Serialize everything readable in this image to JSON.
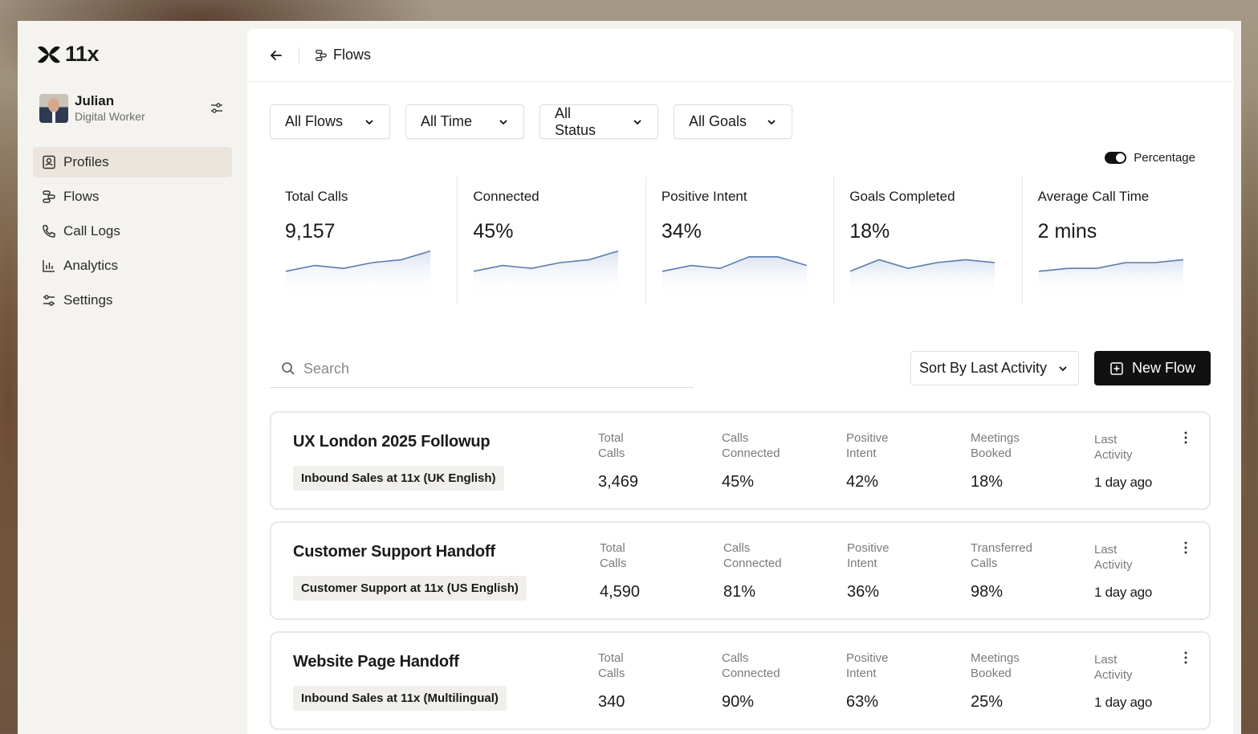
{
  "brand": {
    "logo_text": "11x"
  },
  "profile": {
    "name": "Julian",
    "role": "Digital Worker"
  },
  "sidebar": {
    "items": [
      {
        "label": "Profiles",
        "icon": "profile-icon",
        "active": true
      },
      {
        "label": "Flows",
        "icon": "flows-icon",
        "active": false
      },
      {
        "label": "Call Logs",
        "icon": "phone-icon",
        "active": false
      },
      {
        "label": "Analytics",
        "icon": "bar-chart-icon",
        "active": false
      },
      {
        "label": "Settings",
        "icon": "sliders-icon",
        "active": false
      }
    ]
  },
  "topbar": {
    "title": "Flows"
  },
  "filters": [
    {
      "label": "All Flows"
    },
    {
      "label": "All Time"
    },
    {
      "label": "All Status"
    },
    {
      "label": "All Goals"
    }
  ],
  "toggle": {
    "label": "Percentage",
    "on": true
  },
  "stats": [
    {
      "label": "Total Calls",
      "value": "9,157",
      "trend": [
        2,
        4,
        3,
        5,
        6,
        9
      ]
    },
    {
      "label": "Connected",
      "value": "45%",
      "trend": [
        2,
        4,
        3,
        5,
        6,
        9
      ]
    },
    {
      "label": "Positive Intent",
      "value": "34%",
      "trend": [
        2,
        4,
        3,
        7,
        7,
        4
      ]
    },
    {
      "label": "Goals Completed",
      "value": "18%",
      "trend": [
        2,
        6,
        3,
        5,
        6,
        5
      ]
    },
    {
      "label": "Average Call Time",
      "value": "2 mins",
      "trend": [
        2,
        3,
        3,
        5,
        5,
        6
      ]
    }
  ],
  "search": {
    "placeholder": "Search",
    "value": ""
  },
  "sort": {
    "label": "Sort By Last Activity"
  },
  "new_flow": {
    "label": "New Flow"
  },
  "flows": [
    {
      "title": "UX London 2025 Followup",
      "tag": "Inbound Sales at 11x (UK English)",
      "metrics": [
        {
          "label": "Total\nCalls",
          "value": "3,469"
        },
        {
          "label": "Calls\nConnected",
          "value": "45%"
        },
        {
          "label": "Positive\nIntent",
          "value": "42%"
        },
        {
          "label": "Meetings\nBooked",
          "value": "18%"
        },
        {
          "label": "Last\nActivity",
          "value": "1 day ago"
        }
      ]
    },
    {
      "title": "Customer Support Handoff",
      "tag": "Customer Support at 11x (US English)",
      "metrics": [
        {
          "label": "Total\nCalls",
          "value": "4,590"
        },
        {
          "label": "Calls\nConnected",
          "value": "81%"
        },
        {
          "label": "Positive\nIntent",
          "value": "36%"
        },
        {
          "label": "Transferred\nCalls",
          "value": "98%"
        },
        {
          "label": "Last\nActivity",
          "value": "1 day ago"
        }
      ]
    },
    {
      "title": "Website Page Handoff",
      "tag": "Inbound Sales at 11x (Multilingual)",
      "metrics": [
        {
          "label": "Total\nCalls",
          "value": "340"
        },
        {
          "label": "Calls\nConnected",
          "value": "90%"
        },
        {
          "label": "Positive\nIntent",
          "value": "63%"
        },
        {
          "label": "Meetings\nBooked",
          "value": "25%"
        },
        {
          "label": "Last\nActivity",
          "value": "1 day ago"
        }
      ]
    }
  ],
  "colors": {
    "accent": "#111111",
    "spark_line": "#5b7bb0",
    "spark_fill": "#dbe4f1",
    "active_nav": "#ebe5de"
  }
}
